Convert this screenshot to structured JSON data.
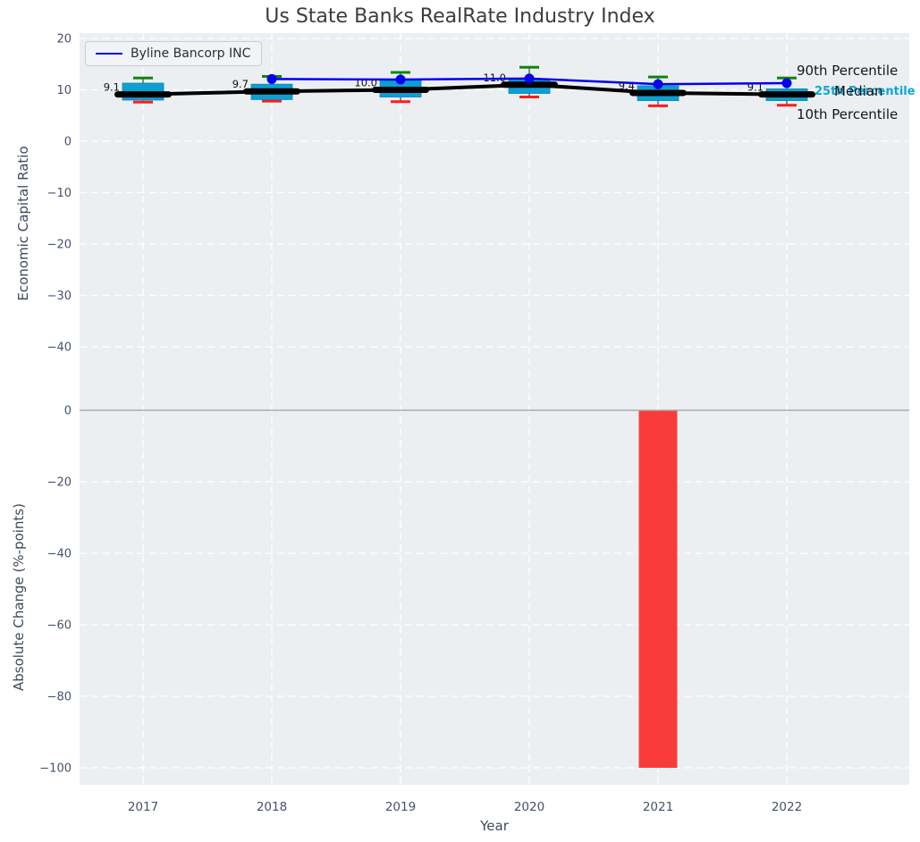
{
  "title": "Us State Banks RealRate Industry Index",
  "legend": {
    "label": "Byline Bancorp INC"
  },
  "annotations": {
    "p90": "90th Percentile",
    "median": "Median",
    "p25": "25th Percentile",
    "p10": "10th Percentile"
  },
  "colors": {
    "axes_bg": "#eceff1",
    "grid": "#ffffff",
    "zero_line": "#ababab",
    "box_fill": "#0d9fd1",
    "box_edge": "#0889b8",
    "whisker": "#4d4d4d",
    "cap_top": "#0c870c",
    "cap_bottom": "#ff1c1c",
    "median": "#000000",
    "byline": "#0000ee",
    "bar": "#fa3b3b",
    "tick_text": "#44536a",
    "label_text": "#111111"
  },
  "chart_data": {
    "type": "boxplot+line+bar",
    "title": "Us State Banks RealRate Industry Index",
    "xlabel": "Year",
    "years": [
      "2017",
      "2018",
      "2019",
      "2020",
      "2021",
      "2022"
    ],
    "top_panel": {
      "ylabel": "Economic Capital Ratio",
      "yticks": [
        20,
        10,
        0,
        -10,
        -20,
        -30,
        -40
      ],
      "ylim": [
        -50,
        21
      ],
      "boxes": [
        {
          "year": "2017",
          "p10": 7.6,
          "p25": 8.0,
          "median": 9.1,
          "p75": 11.3,
          "p90": 12.3
        },
        {
          "year": "2018",
          "p10": 7.8,
          "p25": 8.1,
          "median": 9.7,
          "p75": 11.1,
          "p90": 12.6
        },
        {
          "year": "2019",
          "p10": 7.7,
          "p25": 8.6,
          "median": 10.0,
          "p75": 12.0,
          "p90": 13.4
        },
        {
          "year": "2020",
          "p10": 8.6,
          "p25": 9.3,
          "median": 11.0,
          "p75": 11.9,
          "p90": 14.4
        },
        {
          "year": "2021",
          "p10": 6.9,
          "p25": 7.9,
          "median": 9.4,
          "p75": 10.8,
          "p90": 12.5
        },
        {
          "year": "2022",
          "p10": 7.0,
          "p25": 7.9,
          "median": 9.1,
          "p75": 10.2,
          "p90": 12.3
        }
      ],
      "median_labels": [
        "9.1",
        "9.7",
        "10.0",
        "11.0",
        "9.4",
        "9.1"
      ],
      "series": [
        {
          "name": "Byline Bancorp INC",
          "values": [
            null,
            12.1,
            12.0,
            12.2,
            11.1,
            11.3
          ]
        }
      ]
    },
    "bottom_panel": {
      "ylabel": "Absolute Change (%-points)",
      "yticks": [
        0,
        -20,
        -40,
        -60,
        -80,
        -100
      ],
      "ylim": [
        -105,
        4
      ],
      "bars": [
        {
          "year": "2021",
          "value": -100
        }
      ]
    }
  }
}
